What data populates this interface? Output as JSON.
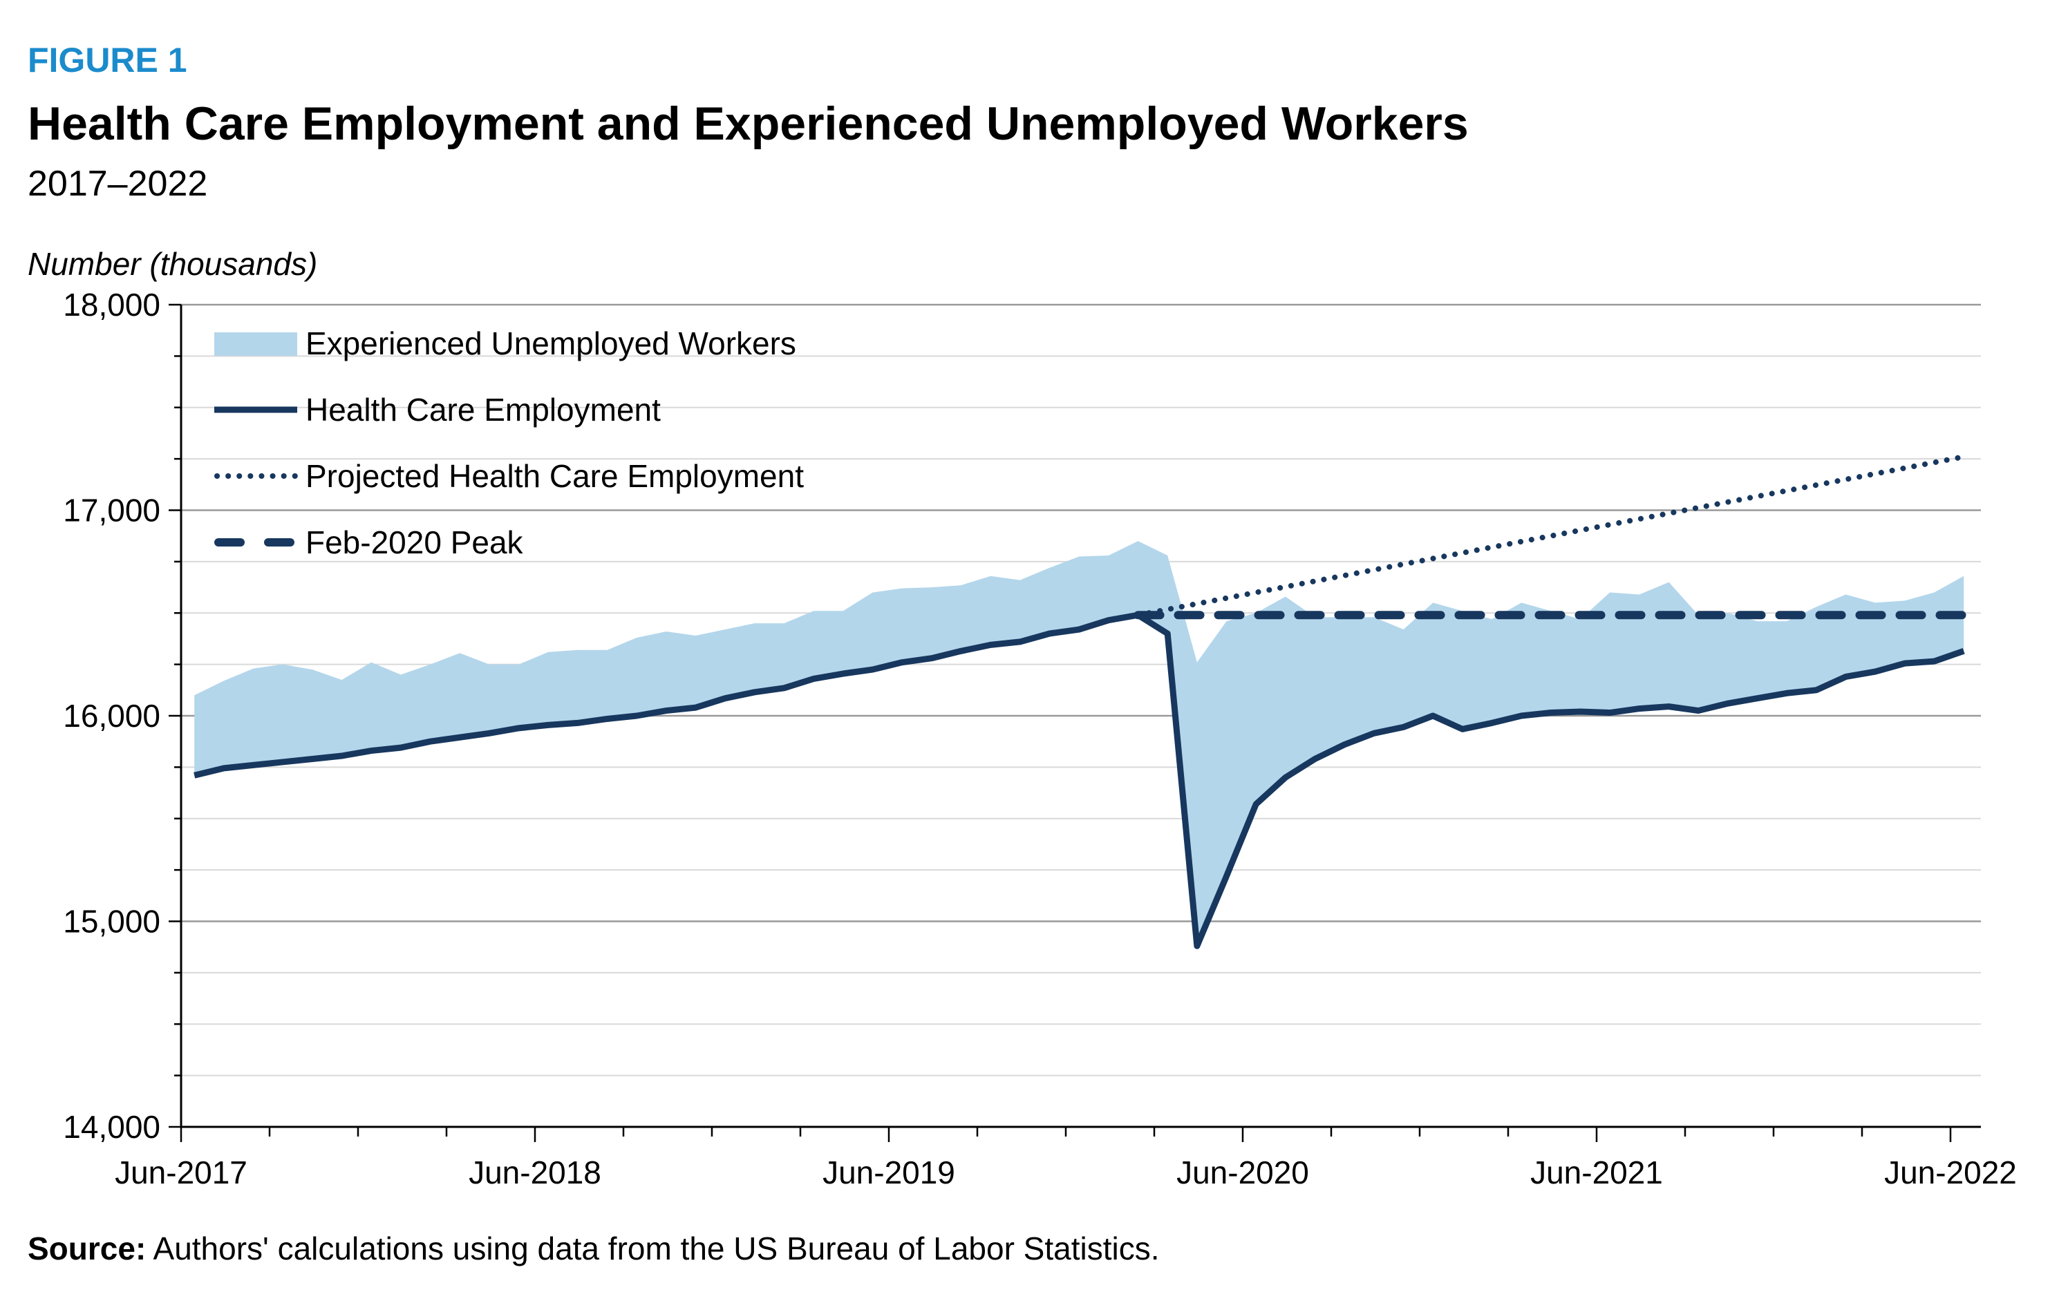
{
  "header": {
    "figure_label": "FIGURE 1",
    "title": "Health Care Employment and Experienced Unemployed Workers",
    "subtitle": "2017–2022"
  },
  "footer": {
    "source_label": "Source:",
    "source_text": " Authors' calculations using data from the US Bureau of Labor Statistics."
  },
  "colors": {
    "fill": "#b3d6eb",
    "line": "#17375e",
    "figure_label": "#1b8bcc",
    "grid": "#d9d9d9",
    "major_grid": "#999999"
  },
  "chart_data": {
    "type": "area+line",
    "ylabel": "Number (thousands)",
    "ylim": [
      14000,
      18000
    ],
    "y_ticks": [
      "14,000",
      "15,000",
      "16,000",
      "17,000",
      "18,000"
    ],
    "y_tick_values": [
      14000,
      15000,
      16000,
      17000,
      18000
    ],
    "x_tick_labels": [
      "Jun-2017",
      "Jun-2018",
      "Jun-2019",
      "Jun-2020",
      "Jun-2021",
      "Jun-2022"
    ],
    "x_start": "Jun-2017",
    "x_end": "Jun-2022",
    "grid": true,
    "legend_position": "top-left",
    "series": [
      {
        "name": "Experienced Unemployed Workers",
        "kind": "stacked-area-on-health-care-employment",
        "values": [
          390,
          425,
          470,
          475,
          435,
          370,
          430,
          355,
          375,
          410,
          335,
          310,
          355,
          355,
          335,
          380,
          385,
          350,
          335,
          335,
          315,
          330,
          305,
          375,
          360,
          345,
          320,
          335,
          300,
          320,
          355,
          315,
          360,
          380,
          1380,
          1240,
          930,
          880,
          690,
          620,
          565,
          475,
          550,
          575,
          505,
          550,
          495,
          450,
          585,
          555,
          605,
          465,
          440,
          375,
          350,
          405,
          400,
          335,
          305,
          335,
          365
        ]
      },
      {
        "name": "Health Care Employment",
        "kind": "solid-line",
        "values": [
          15710,
          15745,
          15760,
          15775,
          15790,
          15805,
          15830,
          15845,
          15875,
          15895,
          15915,
          15940,
          15955,
          15965,
          15985,
          16000,
          16025,
          16040,
          16085,
          16115,
          16135,
          16180,
          16205,
          16225,
          16260,
          16280,
          16315,
          16345,
          16360,
          16400,
          16420,
          16465,
          16490,
          16400,
          14880,
          15220,
          15570,
          15700,
          15790,
          15860,
          15915,
          15945,
          16000,
          15935,
          15965,
          16000,
          16015,
          16020,
          16015,
          16035,
          16045,
          16025,
          16060,
          16085,
          16110,
          16125,
          16190,
          16215,
          16255,
          16265,
          16315
        ]
      },
      {
        "name": "Projected Health Care Employment",
        "kind": "dotted-line",
        "start": {
          "x": "Feb-2020",
          "y": 16490
        },
        "end": {
          "x": "Jun-2022",
          "y": 17260
        }
      },
      {
        "name": "Feb-2020 Peak",
        "kind": "dashed-line",
        "start": {
          "x": "Feb-2020",
          "y": 16490
        },
        "end": {
          "x": "Jun-2022",
          "y": 16490
        }
      }
    ]
  }
}
